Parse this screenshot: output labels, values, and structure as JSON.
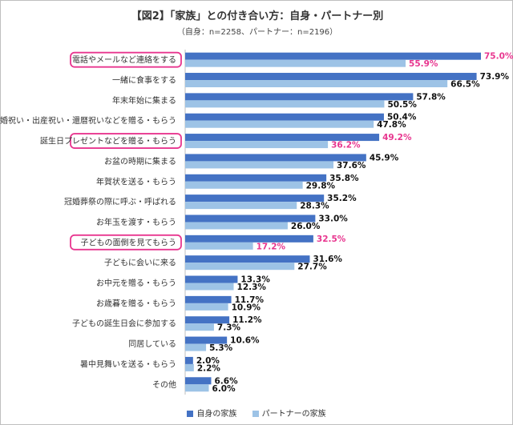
{
  "chart_data": {
    "type": "bar",
    "orientation": "horizontal",
    "title": "【図2】「家族」との付き合い方：自身・パートナー別",
    "subtitle": "（自身：n=2258、パートナー：n=2196）",
    "categories": [
      "電話やメールなど連絡をする",
      "一緒に食事をする",
      "年末年始に集まる",
      "結婚祝い・出産祝い・還暦祝いなどを贈る・もらう",
      "誕生日プレゼントなどを贈る・もらう",
      "お盆の時期に集まる",
      "年賀状を送る・もらう",
      "冠婚葬祭の際に呼ぶ・呼ばれる",
      "お年玉を渡す・もらう",
      "子どもの面倒を見てもらう",
      "子どもに会いに来る",
      "お中元を贈る・もらう",
      "お歳暮を贈る・もらう",
      "子どもの誕生日会に参加する",
      "同居している",
      "暑中見舞いを送る・もらう",
      "その他"
    ],
    "series": [
      {
        "name": "自身の家族",
        "color": "#4472c4",
        "values": [
          75.0,
          73.9,
          57.8,
          50.4,
          49.2,
          45.9,
          35.8,
          35.2,
          33.0,
          32.5,
          31.6,
          13.3,
          11.7,
          11.2,
          10.6,
          2.0,
          6.6
        ],
        "labels": [
          "75.0%",
          "73.9%",
          "57.8%",
          "50.4%",
          "49.2%",
          "45.9%",
          "35.8%",
          "35.2%",
          "33.0%",
          "32.5%",
          "31.6%",
          "13.3%",
          "11.7%",
          "11.2%",
          "10.6%",
          "2.0%",
          "6.6%"
        ]
      },
      {
        "name": "パートナーの家族",
        "color": "#9dc3e6",
        "values": [
          55.9,
          66.5,
          50.5,
          47.8,
          36.2,
          37.6,
          29.8,
          28.3,
          26.0,
          17.2,
          27.7,
          12.3,
          10.9,
          7.3,
          5.3,
          2.2,
          6.0
        ],
        "labels": [
          "55.9%",
          "66.5%",
          "50.5%",
          "47.8%",
          "36.2%",
          "37.6%",
          "29.8%",
          "28.3%",
          "26.0%",
          "17.2%",
          "27.7%",
          "12.3%",
          "10.9%",
          "7.3%",
          "5.3%",
          "2.2%",
          "6.0%"
        ]
      }
    ],
    "highlighted_categories": [
      0,
      4,
      9
    ],
    "highlight_color": "#e8368f",
    "xlim": [
      0,
      80
    ],
    "grid": false,
    "legend_position": "bottom"
  }
}
